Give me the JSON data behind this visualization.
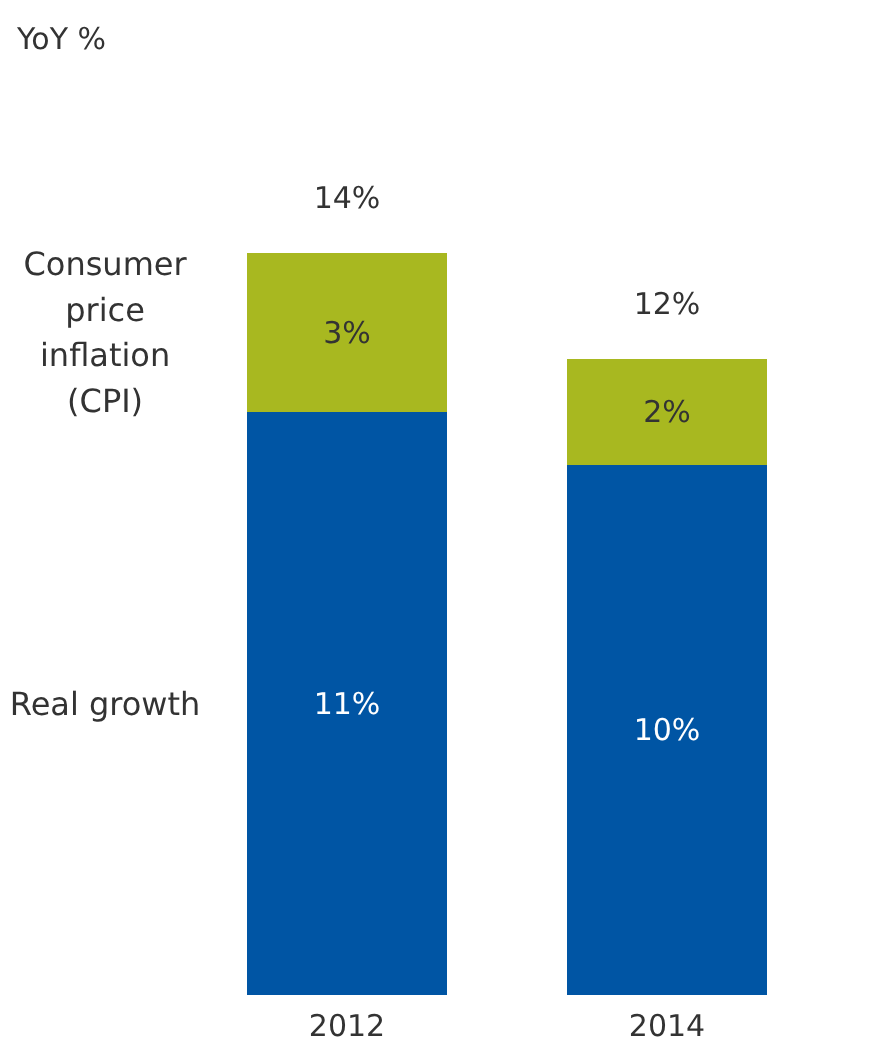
{
  "chart_data": {
    "type": "bar",
    "title": "YoY %",
    "categories": [
      "2012",
      "2014"
    ],
    "stacked": true,
    "series": [
      {
        "name": "Real growth",
        "color": "#0055a4",
        "values": [
          11,
          10
        ],
        "value_labels": [
          "11%",
          "10%"
        ]
      },
      {
        "name": "Consumer price inflation (CPI)",
        "color": "#a8b820",
        "values": [
          3,
          2
        ],
        "value_labels": [
          "3%",
          "2%"
        ]
      }
    ],
    "totals": [
      "14%",
      "12%"
    ]
  }
}
